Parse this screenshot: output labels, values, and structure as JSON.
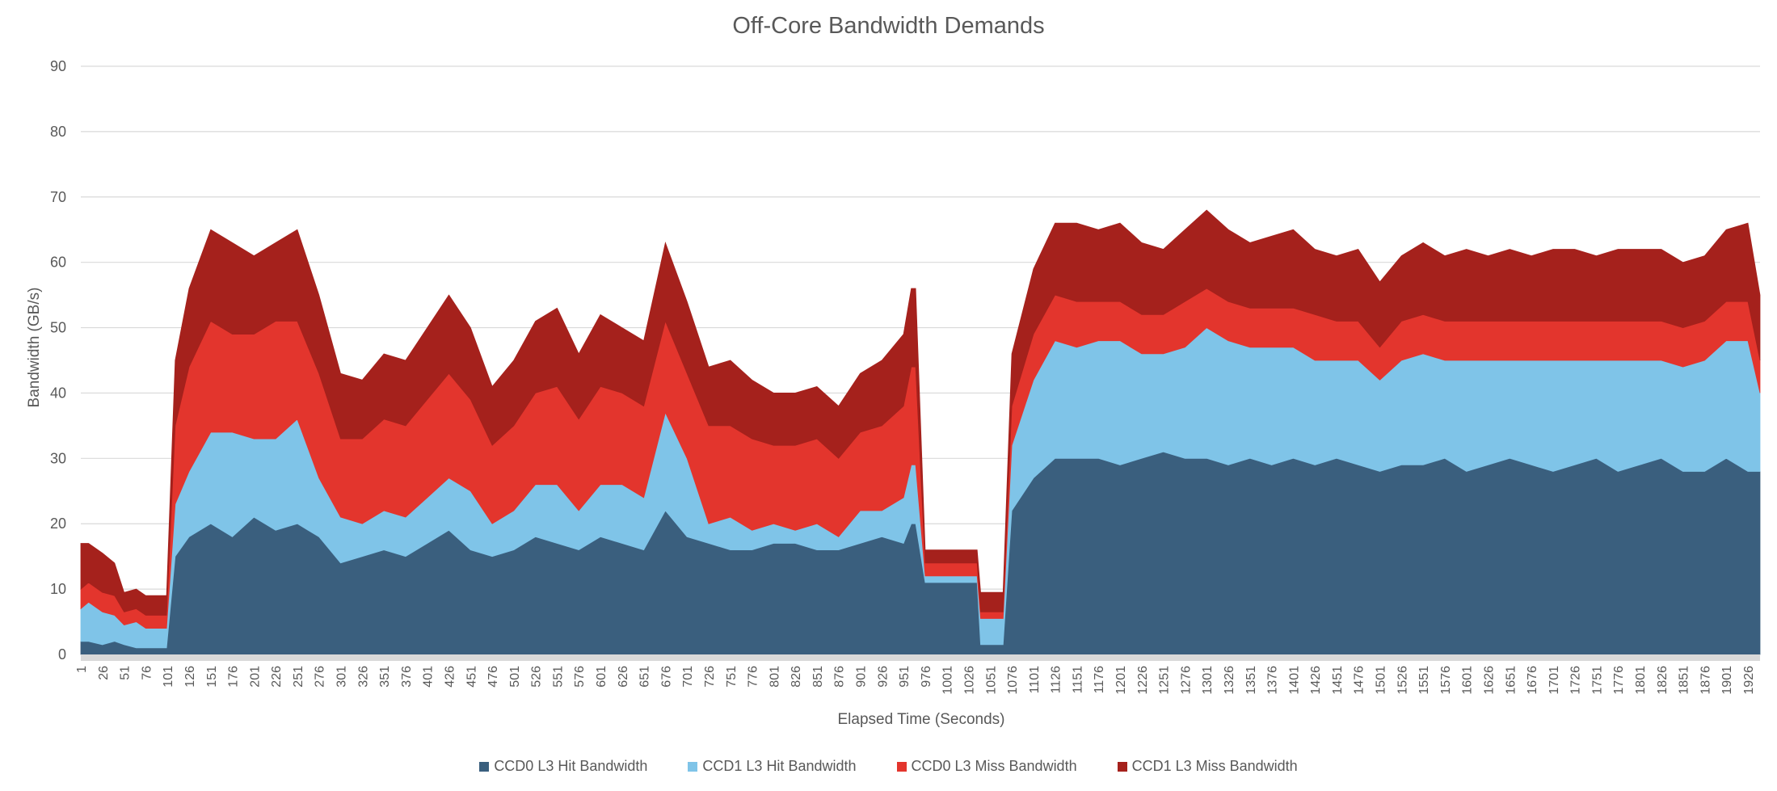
{
  "chart_data": {
    "type": "area",
    "stacked": true,
    "title": "Off-Core Bandwidth Demands",
    "xlabel": "Elapsed Time (Seconds)",
    "ylabel": "Bandwidth (GB/s)",
    "ylim": [
      0,
      90
    ],
    "yticks": [
      0,
      10,
      20,
      30,
      40,
      50,
      60,
      70,
      80,
      90
    ],
    "xlim": [
      1,
      1940
    ],
    "xtick_start": 1,
    "xtick_step": 25,
    "xticks": [
      "1",
      "26",
      "51",
      "76",
      "101",
      "126",
      "151",
      "176",
      "201",
      "226",
      "251",
      "276",
      "301",
      "326",
      "351",
      "376",
      "401",
      "426",
      "451",
      "476",
      "501",
      "526",
      "551",
      "576",
      "601",
      "626",
      "651",
      "676",
      "701",
      "726",
      "751",
      "776",
      "801",
      "826",
      "851",
      "876",
      "901",
      "926",
      "951",
      "976",
      "1001",
      "1026",
      "1051",
      "1076",
      "1101",
      "1126",
      "1151",
      "1176",
      "1201",
      "1226",
      "1251",
      "1276",
      "1301",
      "1326",
      "1351",
      "1376",
      "1401",
      "1426",
      "1451",
      "1476",
      "1501",
      "1526",
      "1551",
      "1576",
      "1601",
      "1626",
      "1651",
      "1676",
      "1701",
      "1726",
      "1751",
      "1776",
      "1801",
      "1826",
      "1851",
      "1876",
      "1901",
      "1926"
    ],
    "grid": true,
    "legend_position": "bottom",
    "x": [
      1,
      10,
      26,
      40,
      51,
      65,
      76,
      95,
      100,
      110,
      126,
      151,
      176,
      201,
      226,
      251,
      276,
      301,
      326,
      351,
      376,
      401,
      426,
      451,
      476,
      501,
      526,
      551,
      576,
      601,
      626,
      651,
      676,
      701,
      726,
      751,
      776,
      801,
      826,
      851,
      876,
      901,
      926,
      951,
      960,
      965,
      976,
      1001,
      1026,
      1036,
      1040,
      1051,
      1060,
      1066,
      1076,
      1101,
      1126,
      1151,
      1176,
      1201,
      1226,
      1251,
      1276,
      1301,
      1326,
      1351,
      1376,
      1401,
      1426,
      1451,
      1476,
      1501,
      1526,
      1551,
      1576,
      1601,
      1626,
      1651,
      1676,
      1701,
      1726,
      1751,
      1776,
      1801,
      1826,
      1851,
      1876,
      1901,
      1926,
      1940
    ],
    "series": [
      {
        "name": "CCD0 L3 Hit Bandwidth",
        "color": "#3A5F7E",
        "values": [
          2,
          2,
          1.5,
          2,
          1.5,
          1,
          1,
          1,
          1,
          15,
          18,
          20,
          18,
          21,
          19,
          20,
          18,
          14,
          15,
          16,
          15,
          17,
          19,
          16,
          15,
          16,
          18,
          17,
          16,
          18,
          17,
          16,
          22,
          18,
          17,
          16,
          16,
          17,
          17,
          16,
          16,
          17,
          18,
          17,
          20,
          20,
          11,
          11,
          11,
          11,
          1.5,
          1.5,
          1.5,
          1.5,
          22,
          27,
          30,
          30,
          30,
          29,
          30,
          31,
          30,
          30,
          29,
          30,
          29,
          30,
          29,
          30,
          29,
          28,
          29,
          29,
          30,
          28,
          29,
          30,
          29,
          28,
          29,
          30,
          28,
          29,
          30,
          28,
          28,
          30,
          28,
          28
        ]
      },
      {
        "name": "CCD1 L3 Hit Bandwidth",
        "color": "#7FC4E8",
        "values": [
          5,
          6,
          5,
          4,
          3,
          4,
          3,
          3,
          3,
          8,
          10,
          14,
          16,
          12,
          14,
          16,
          9,
          7,
          5,
          6,
          6,
          7,
          8,
          9,
          5,
          6,
          8,
          9,
          6,
          8,
          9,
          8,
          15,
          12,
          3,
          5,
          3,
          3,
          2,
          4,
          2,
          5,
          4,
          7,
          9,
          9,
          1,
          1,
          1,
          1,
          4,
          4,
          4,
          4,
          10,
          15,
          18,
          17,
          18,
          19,
          16,
          15,
          17,
          20,
          19,
          17,
          18,
          17,
          16,
          15,
          16,
          14,
          16,
          17,
          15,
          17,
          16,
          15,
          16,
          17,
          16,
          15,
          17,
          16,
          15,
          16,
          17,
          18,
          20,
          12
        ]
      },
      {
        "name": "CCD0 L3 Miss Bandwidth",
        "color": "#E3352D",
        "values": [
          3,
          3,
          3,
          3,
          2,
          2,
          2,
          2,
          2,
          12,
          16,
          17,
          15,
          16,
          18,
          15,
          16,
          12,
          13,
          14,
          14,
          15,
          16,
          14,
          12,
          13,
          14,
          15,
          14,
          15,
          14,
          14,
          14,
          13,
          15,
          14,
          14,
          12,
          13,
          13,
          12,
          12,
          13,
          14,
          15,
          15,
          2,
          2,
          2,
          2,
          1,
          1,
          1,
          1,
          6,
          7,
          7,
          7,
          6,
          6,
          6,
          6,
          7,
          6,
          6,
          6,
          6,
          6,
          7,
          6,
          6,
          5,
          6,
          6,
          6,
          6,
          6,
          6,
          6,
          6,
          6,
          6,
          6,
          6,
          6,
          6,
          6,
          6,
          6,
          5
        ]
      },
      {
        "name": "CCD1 L3 Miss Bandwidth",
        "color": "#A5211C",
        "values": [
          7,
          6,
          6,
          5,
          3,
          3,
          3,
          3,
          3,
          10,
          12,
          14,
          14,
          12,
          12,
          14,
          12,
          10,
          9,
          10,
          10,
          11,
          12,
          11,
          9,
          10,
          11,
          12,
          10,
          11,
          10,
          10,
          12,
          11,
          9,
          10,
          9,
          8,
          8,
          8,
          8,
          9,
          10,
          11,
          12,
          12,
          2,
          2,
          2,
          2,
          3,
          3,
          3,
          3,
          8,
          10,
          11,
          12,
          11,
          12,
          11,
          10,
          11,
          12,
          11,
          10,
          11,
          12,
          10,
          10,
          11,
          10,
          10,
          11,
          10,
          11,
          10,
          11,
          10,
          11,
          11,
          10,
          11,
          11,
          11,
          10,
          10,
          11,
          12,
          10
        ]
      }
    ]
  }
}
